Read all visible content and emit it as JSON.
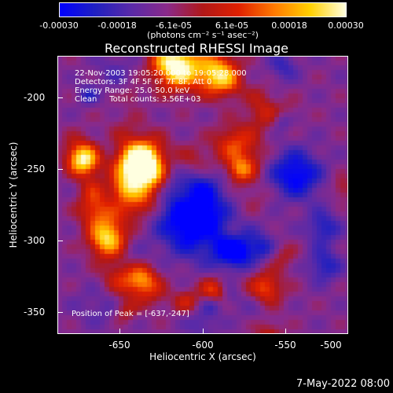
{
  "chart_data": {
    "type": "heatmap",
    "title": "Reconstructed RHESSI Image",
    "xlabel": "Heliocentric X (arcsec)",
    "ylabel": "Heliocentric Y (arcsec)",
    "xlim": [
      -675,
      -500
    ],
    "ylim": [
      -372,
      -180
    ],
    "xticks": [
      -650,
      -600,
      -550,
      -500
    ],
    "yticks": [
      -350,
      -300,
      -250,
      -200
    ],
    "colorbar": {
      "min": -0.0003,
      "max": 0.0003,
      "ticks": [
        "-0.00030",
        "-0.00018",
        "-6.1e-05",
        "6.1e-05",
        "0.00018",
        "0.00030"
      ],
      "unit_label": "(photons cm⁻² s⁻¹ asec⁻²)"
    },
    "annotations": [
      "22-Nov-2003 19:05:20.000 to 19:05:28.000",
      "Detectors: 3F 4F 5F 6F 7F 8F, Att 0",
      "Energy Range: 25.0-50.0 keV",
      "Clean     Total counts: 3.56E+03"
    ],
    "peak_label": "Position of Peak = [-637,-247]",
    "peak_position": [
      -637,
      -247
    ],
    "colors": {
      "background": "#000000",
      "foreground": "#ffffff",
      "colormap": [
        "#0000ff",
        "#2020c0",
        "#5a2aa8",
        "#8a2a8a",
        "#b01818",
        "#e02000",
        "#ff7a00",
        "#ffd000",
        "#ffffe0"
      ]
    }
  },
  "footer": {
    "timestamp": "7-May-2022 08:00"
  }
}
